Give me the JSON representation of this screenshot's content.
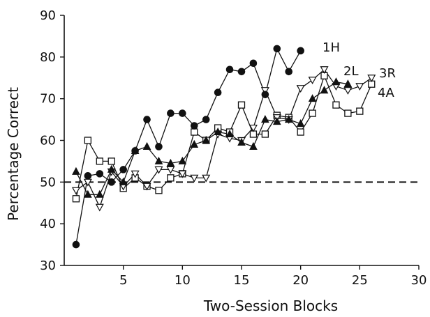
{
  "chart_data": {
    "type": "line",
    "title": "",
    "xlabel": "Two-Session Blocks",
    "ylabel": "Percentage Correct",
    "xlim": [
      0,
      30
    ],
    "ylim": [
      30,
      90
    ],
    "x_ticks": [
      "5",
      "10",
      "15",
      "20",
      "25",
      "30"
    ],
    "y_ticks": [
      "30",
      "40",
      "50",
      "60",
      "70",
      "80",
      "90"
    ],
    "reference_line": {
      "y": 50,
      "style": "dashed"
    },
    "series": [
      {
        "name": "1H",
        "marker": "filled-circle",
        "x": [
          1,
          2,
          3,
          4,
          5,
          6,
          7,
          8,
          9,
          10,
          11,
          12,
          13,
          14,
          15,
          16,
          17,
          18,
          19,
          20
        ],
        "y": [
          35,
          51.5,
          52,
          50,
          53,
          57.5,
          65,
          58.5,
          66.5,
          66.5,
          63.5,
          65,
          71.5,
          77,
          76.5,
          78.5,
          71,
          82,
          76.5,
          81.5
        ]
      },
      {
        "name": "2L",
        "marker": "open-square",
        "x": [
          1,
          2,
          3,
          4,
          5,
          6,
          7,
          8,
          9,
          10,
          11,
          12,
          13,
          14,
          15,
          16,
          17,
          18,
          19,
          20,
          21,
          22,
          23,
          24,
          25,
          26
        ],
        "y": [
          46,
          60,
          55,
          55,
          48.5,
          51,
          49,
          48,
          51,
          52,
          62,
          60,
          63,
          62,
          68.5,
          61.5,
          61.5,
          66,
          65.5,
          62,
          66.5,
          75.5,
          68.5,
          66.5,
          67,
          73.5
        ]
      },
      {
        "name": "3R",
        "marker": "open-triangle-down",
        "x": [
          1,
          2,
          3,
          4,
          5,
          6,
          7,
          8,
          9,
          10,
          11,
          12,
          13,
          14,
          15,
          16,
          17,
          18,
          19,
          20,
          21,
          22,
          23,
          24,
          25,
          26
        ],
        "y": [
          48,
          50,
          44,
          52.5,
          49,
          52,
          49,
          53,
          53,
          52,
          51,
          51,
          61.5,
          60.5,
          60,
          63,
          72,
          65.5,
          65,
          72.5,
          74.5,
          77,
          73,
          72,
          73,
          75
        ]
      },
      {
        "name": "4A",
        "marker": "filled-triangle-up",
        "x": [
          1,
          2,
          3,
          4,
          5,
          6,
          7,
          8,
          9,
          10,
          11,
          12,
          13,
          14,
          15,
          16,
          17,
          18,
          19,
          20,
          21,
          22,
          23,
          24
        ],
        "y": [
          52.5,
          47,
          47,
          53,
          50,
          57.5,
          58.5,
          55,
          54.5,
          55,
          59,
          60,
          62,
          61.5,
          59.5,
          58.5,
          65,
          64.5,
          65,
          64,
          70,
          72,
          74,
          73.5
        ]
      }
    ],
    "colors": {
      "line": "#111111",
      "axis": "#111111",
      "fill": "#111111",
      "open_fill": "#ffffff"
    }
  }
}
